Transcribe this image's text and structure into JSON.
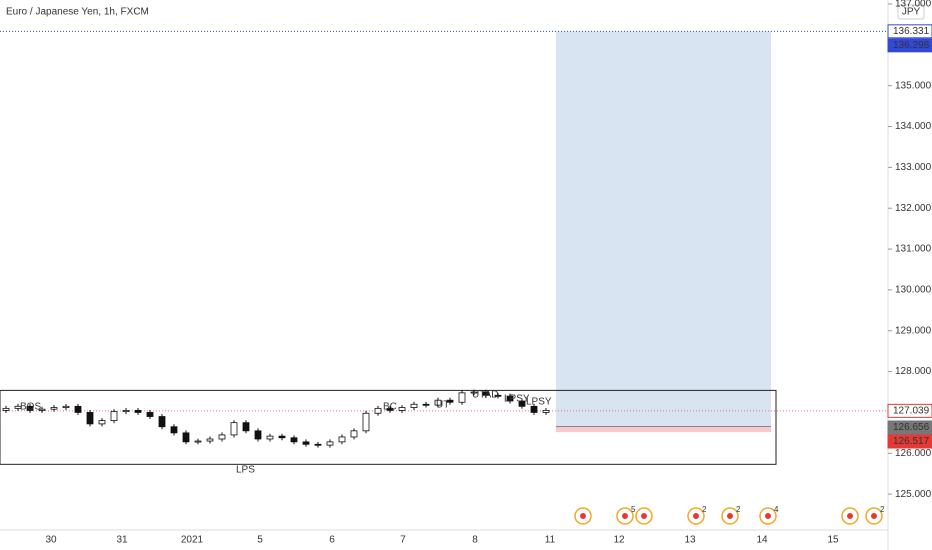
{
  "chart_data": {
    "type": "candlestick",
    "title": "Euro / Japanese Yen, 1h, FXCM",
    "currency": "JPY",
    "open": [
      127.05,
      127.1,
      127.15,
      127.05,
      127.08,
      127.12,
      127.15,
      127.0,
      126.72,
      126.8,
      127.02,
      127.05,
      127.0,
      126.9,
      126.65,
      126.5,
      126.28,
      126.3,
      126.35,
      126.45,
      126.75,
      126.55,
      126.35,
      126.42,
      126.38,
      126.28,
      126.22,
      126.2,
      126.28,
      126.4,
      126.55,
      126.98,
      127.1,
      127.05,
      127.12,
      127.2,
      127.18,
      127.3,
      127.25,
      127.48,
      127.5,
      127.42,
      127.4,
      127.28,
      127.15,
      127.0
    ],
    "high": [
      127.16,
      127.21,
      127.21,
      127.14,
      127.18,
      127.21,
      127.21,
      127.06,
      126.86,
      127.08,
      127.11,
      127.11,
      127.06,
      126.96,
      126.71,
      126.56,
      126.36,
      126.41,
      126.51,
      126.81,
      126.81,
      126.61,
      126.48,
      126.48,
      126.44,
      126.34,
      126.28,
      126.34,
      126.46,
      126.61,
      127.04,
      127.16,
      127.16,
      127.18,
      127.26,
      127.26,
      127.36,
      127.36,
      127.54,
      127.56,
      127.56,
      127.48,
      127.46,
      127.34,
      127.21,
      127.11
    ],
    "low": [
      126.99,
      127.04,
      126.99,
      126.99,
      127.02,
      127.06,
      126.94,
      126.66,
      126.66,
      126.74,
      126.96,
      126.94,
      126.84,
      126.59,
      126.44,
      126.22,
      126.22,
      126.24,
      126.29,
      126.39,
      126.49,
      126.29,
      126.29,
      126.32,
      126.22,
      126.16,
      126.14,
      126.14,
      126.22,
      126.34,
      126.49,
      126.92,
      126.99,
      126.99,
      127.06,
      127.12,
      127.12,
      127.19,
      127.19,
      127.42,
      127.36,
      127.34,
      127.22,
      127.09,
      126.94,
      126.94
    ],
    "close": [
      127.1,
      127.15,
      127.05,
      127.08,
      127.12,
      127.15,
      127.0,
      126.72,
      126.8,
      127.02,
      127.05,
      127.0,
      126.9,
      126.65,
      126.5,
      126.28,
      126.3,
      126.35,
      126.45,
      126.75,
      126.55,
      126.35,
      126.42,
      126.38,
      126.28,
      126.22,
      126.2,
      126.28,
      126.4,
      126.55,
      126.98,
      127.1,
      127.05,
      127.12,
      127.2,
      127.18,
      127.3,
      127.25,
      127.48,
      127.5,
      127.42,
      127.4,
      127.28,
      127.15,
      127.0,
      127.05
    ],
    "x_axis_labels": [
      "30",
      "31",
      "2021",
      "5",
      "6",
      "7",
      "8",
      "11",
      "12",
      "13",
      "14",
      "15"
    ],
    "ylim": [
      124.122,
      137.098
    ],
    "yticks": [
      {
        "value": 125,
        "label": "125.000"
      },
      {
        "value": 126,
        "label": "126.000"
      },
      {
        "value": 127,
        "label": "127.000"
      },
      {
        "value": 128,
        "label": "128.000"
      },
      {
        "value": 129,
        "label": "129.000"
      },
      {
        "value": 130,
        "label": "130.000"
      },
      {
        "value": 131,
        "label": "131.000"
      },
      {
        "value": 132,
        "label": "132.000"
      },
      {
        "value": 133,
        "label": "133.000"
      },
      {
        "value": 134,
        "label": "134.000"
      },
      {
        "value": 135,
        "label": "135.000"
      },
      {
        "value": 136,
        "label": "136.000"
      },
      {
        "value": 137,
        "label": "137.000"
      }
    ],
    "position": {
      "target": 136.331,
      "target_alt": 136.298,
      "entry": 126.656,
      "stop": 126.517
    },
    "last_price": 127.039,
    "range_box": {
      "top": 127.54,
      "bottom": 125.73
    },
    "annotations": [
      "BOS",
      "LPS",
      "BC",
      "UT",
      "UTAD",
      "LPSY",
      "LPSY"
    ],
    "event_counts": [
      "5",
      "2",
      "2",
      "4",
      "2"
    ]
  }
}
